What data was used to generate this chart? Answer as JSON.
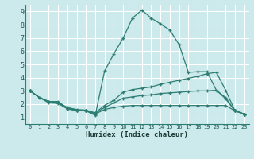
{
  "background_color": "#cce9ec",
  "grid_color": "#ffffff",
  "line_color": "#2d7d72",
  "xlabel": "Humidex (Indice chaleur)",
  "xlim": [
    -0.5,
    23.5
  ],
  "ylim": [
    0.5,
    9.5
  ],
  "xticks": [
    0,
    1,
    2,
    3,
    4,
    5,
    6,
    7,
    8,
    9,
    10,
    11,
    12,
    13,
    14,
    15,
    16,
    17,
    18,
    19,
    20,
    21,
    22,
    23
  ],
  "yticks": [
    1,
    2,
    3,
    4,
    5,
    6,
    7,
    8,
    9
  ],
  "series": [
    {
      "x": [
        0,
        1,
        2,
        3,
        4,
        5,
        6,
        7,
        8,
        9,
        10,
        11,
        12,
        13,
        14,
        15,
        16,
        17,
        18,
        19,
        20,
        21,
        22,
        23
      ],
      "y": [
        3.0,
        2.5,
        2.2,
        2.2,
        1.65,
        1.55,
        1.5,
        1.15,
        4.5,
        5.8,
        7.0,
        8.5,
        9.1,
        8.5,
        8.05,
        7.6,
        6.5,
        4.4,
        4.45,
        4.45,
        3.05,
        2.5,
        1.5,
        1.25
      ]
    },
    {
      "x": [
        0,
        1,
        2,
        3,
        4,
        5,
        6,
        7,
        8,
        9,
        10,
        11,
        12,
        13,
        14,
        15,
        16,
        17,
        18,
        19,
        20,
        21,
        22,
        23
      ],
      "y": [
        3.0,
        2.5,
        2.2,
        2.15,
        1.75,
        1.6,
        1.55,
        1.35,
        1.9,
        2.3,
        2.9,
        3.1,
        3.2,
        3.3,
        3.5,
        3.65,
        3.8,
        3.95,
        4.1,
        4.3,
        4.4,
        3.05,
        1.5,
        1.25
      ]
    },
    {
      "x": [
        0,
        1,
        2,
        3,
        4,
        5,
        6,
        7,
        8,
        9,
        10,
        11,
        12,
        13,
        14,
        15,
        16,
        17,
        18,
        19,
        20,
        21,
        22,
        23
      ],
      "y": [
        3.0,
        2.5,
        2.2,
        2.1,
        1.7,
        1.55,
        1.5,
        1.3,
        1.75,
        2.1,
        2.45,
        2.55,
        2.65,
        2.7,
        2.8,
        2.85,
        2.9,
        2.95,
        3.0,
        3.0,
        3.05,
        2.4,
        1.5,
        1.25
      ]
    },
    {
      "x": [
        0,
        1,
        2,
        3,
        4,
        5,
        6,
        7,
        8,
        9,
        10,
        11,
        12,
        13,
        14,
        15,
        16,
        17,
        18,
        19,
        20,
        21,
        22,
        23
      ],
      "y": [
        3.0,
        2.5,
        2.1,
        2.05,
        1.65,
        1.5,
        1.5,
        1.25,
        1.6,
        1.75,
        1.85,
        1.9,
        1.9,
        1.9,
        1.9,
        1.9,
        1.9,
        1.9,
        1.9,
        1.9,
        1.9,
        1.9,
        1.5,
        1.25
      ]
    }
  ]
}
